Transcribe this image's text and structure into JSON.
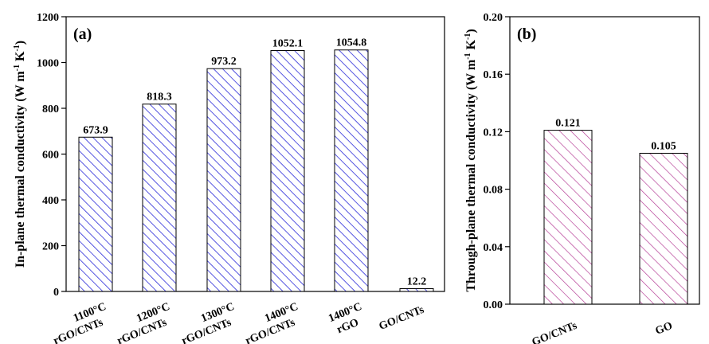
{
  "chart_data": [
    {
      "type": "bar",
      "panel_label": "(a)",
      "ylabel": "In-plane thermal conductivity (W m⁻¹ K⁻¹)",
      "ylim": [
        0,
        1200
      ],
      "yticks": [
        0,
        200,
        400,
        600,
        800,
        1000,
        1200
      ],
      "categories": [
        [
          "1100°C",
          "rGO/CNTs"
        ],
        [
          "1200°C",
          "rGO/CNTs"
        ],
        [
          "1300°C",
          "rGO/CNTs"
        ],
        [
          "1400°C",
          "rGO/CNTs"
        ],
        [
          "1400°C",
          "rGO"
        ],
        [
          "GO/CNTs"
        ]
      ],
      "values": [
        673.9,
        818.3,
        973.2,
        1052.1,
        1054.8,
        12.2
      ],
      "data_labels": [
        "673.9",
        "818.3",
        "973.2",
        "1052.1",
        "1054.8",
        "12.2"
      ],
      "bar_color": "#2b2bd9",
      "pattern": "diagonal-hatch"
    },
    {
      "type": "bar",
      "panel_label": "(b)",
      "ylabel": "Through-plane thermal conductivity (W m⁻¹ K⁻¹)",
      "ylim": [
        0,
        0.2
      ],
      "yticks": [
        "0.00",
        "0.04",
        "0.08",
        "0.12",
        "0.16",
        "0.20"
      ],
      "categories": [
        [
          "GO/CNTs"
        ],
        [
          "GO"
        ]
      ],
      "values": [
        0.121,
        0.105
      ],
      "data_labels": [
        "0.121",
        "0.105"
      ],
      "bar_color": "#b0308f",
      "pattern": "diagonal-hatch"
    }
  ]
}
